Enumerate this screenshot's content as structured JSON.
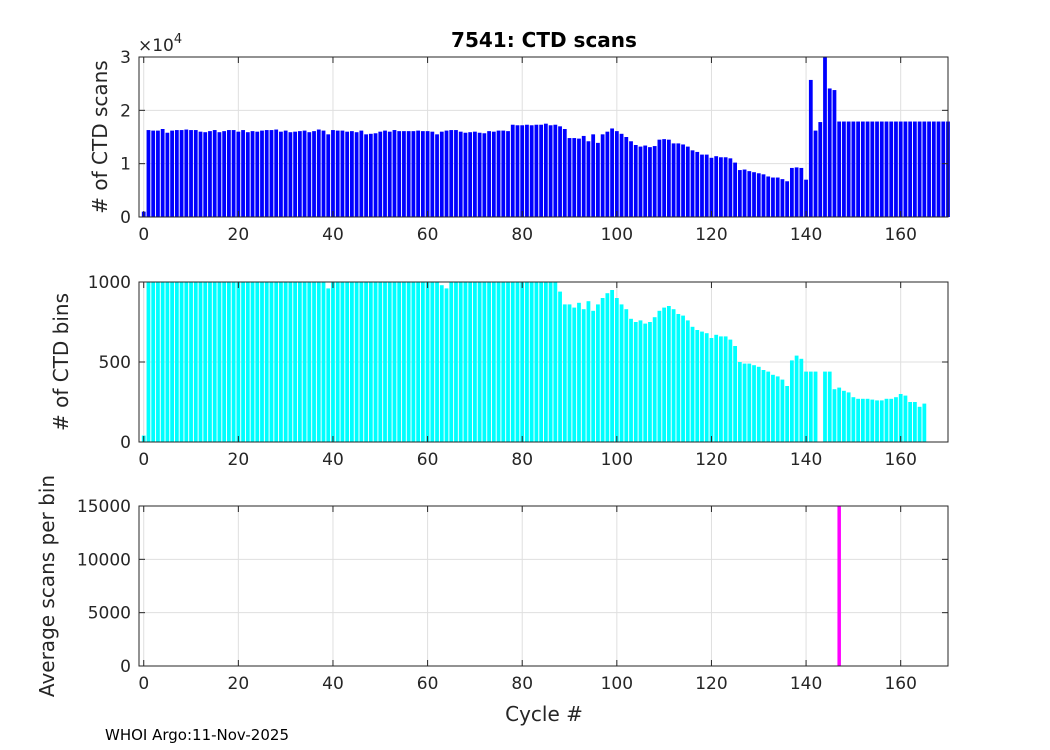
{
  "figure": {
    "footer": "WHOI Argo:11-Nov-2025"
  },
  "chart_data": [
    {
      "type": "bar",
      "title": "7541: CTD scans",
      "ylabel": "# of CTD scans",
      "xlabel": "",
      "exponent_label": "×10",
      "exponent_power": "4",
      "xlim": [
        -1,
        170
      ],
      "ylim": [
        0,
        3
      ],
      "xticks": [
        0,
        20,
        40,
        60,
        80,
        100,
        120,
        140,
        160
      ],
      "yticks": [
        0,
        1,
        2,
        3
      ],
      "grid": true,
      "color": "#0000ff",
      "x_start": 0,
      "values": [
        0.1,
        1.63,
        1.62,
        1.62,
        1.65,
        1.58,
        1.62,
        1.63,
        1.63,
        1.64,
        1.63,
        1.63,
        1.6,
        1.59,
        1.61,
        1.63,
        1.59,
        1.61,
        1.63,
        1.63,
        1.6,
        1.63,
        1.59,
        1.61,
        1.6,
        1.62,
        1.63,
        1.63,
        1.64,
        1.6,
        1.62,
        1.59,
        1.6,
        1.61,
        1.62,
        1.59,
        1.61,
        1.64,
        1.62,
        1.55,
        1.63,
        1.62,
        1.62,
        1.6,
        1.61,
        1.59,
        1.62,
        1.55,
        1.56,
        1.57,
        1.6,
        1.62,
        1.6,
        1.63,
        1.61,
        1.61,
        1.61,
        1.61,
        1.62,
        1.61,
        1.61,
        1.6,
        1.55,
        1.6,
        1.62,
        1.63,
        1.63,
        1.6,
        1.58,
        1.59,
        1.6,
        1.58,
        1.57,
        1.61,
        1.6,
        1.62,
        1.62,
        1.61,
        1.73,
        1.72,
        1.72,
        1.73,
        1.72,
        1.73,
        1.73,
        1.75,
        1.72,
        1.73,
        1.7,
        1.65,
        1.48,
        1.48,
        1.47,
        1.52,
        1.42,
        1.55,
        1.39,
        1.55,
        1.6,
        1.66,
        1.61,
        1.56,
        1.5,
        1.42,
        1.35,
        1.32,
        1.34,
        1.31,
        1.33,
        1.45,
        1.46,
        1.45,
        1.38,
        1.38,
        1.36,
        1.32,
        1.25,
        1.22,
        1.17,
        1.17,
        1.11,
        1.14,
        1.12,
        1.12,
        1.1,
        1.02,
        0.88,
        0.89,
        0.86,
        0.84,
        0.82,
        0.8,
        0.76,
        0.74,
        0.74,
        0.71,
        0.67,
        0.92,
        0.93,
        0.92,
        0.7,
        2.57,
        1.62,
        1.78,
        3.0,
        2.41,
        2.38,
        1.79,
        1.79,
        1.79,
        1.79,
        1.79,
        1.79,
        1.79,
        1.79,
        1.79,
        1.79,
        1.79,
        1.79,
        1.79,
        1.79,
        1.79,
        1.79,
        1.79,
        1.79,
        1.79,
        1.79,
        1.79,
        1.79,
        1.79,
        1.79
      ]
    },
    {
      "type": "bar",
      "title": "",
      "ylabel": "# of CTD bins",
      "xlabel": "",
      "xlim": [
        -1,
        170
      ],
      "ylim": [
        0,
        1000
      ],
      "xticks": [
        0,
        20,
        40,
        60,
        80,
        100,
        120,
        140,
        160
      ],
      "yticks": [
        0,
        500,
        1000
      ],
      "grid": true,
      "color": "#00ffff",
      "x_start": 0,
      "values": [
        40,
        1000,
        1000,
        1000,
        1000,
        1000,
        1000,
        1000,
        1000,
        1000,
        1000,
        1000,
        1000,
        1000,
        1000,
        1000,
        1000,
        1000,
        1000,
        1000,
        1000,
        1000,
        1000,
        1000,
        1000,
        1000,
        1000,
        1000,
        1000,
        1000,
        1000,
        1000,
        1000,
        1000,
        1000,
        1000,
        1000,
        1000,
        1000,
        960,
        1000,
        1000,
        1000,
        1000,
        1000,
        1000,
        1000,
        1000,
        1000,
        1000,
        1000,
        1000,
        1000,
        1000,
        1000,
        1000,
        1000,
        1000,
        1000,
        1000,
        1000,
        1000,
        1000,
        980,
        960,
        1000,
        1000,
        1000,
        1000,
        1000,
        1000,
        1000,
        1000,
        1000,
        1000,
        1000,
        1000,
        1000,
        1000,
        1000,
        1000,
        1000,
        1000,
        1000,
        1000,
        1000,
        1000,
        1000,
        940,
        860,
        860,
        840,
        870,
        830,
        880,
        820,
        860,
        900,
        930,
        950,
        900,
        860,
        830,
        770,
        750,
        760,
        740,
        750,
        780,
        820,
        840,
        850,
        830,
        800,
        790,
        760,
        720,
        700,
        690,
        680,
        650,
        670,
        660,
        660,
        640,
        600,
        500,
        490,
        490,
        480,
        470,
        450,
        440,
        420,
        410,
        390,
        350,
        510,
        540,
        520,
        440,
        440,
        440,
        0,
        440,
        440,
        330,
        340,
        320,
        310,
        280,
        270,
        270,
        270,
        265,
        260,
        260,
        270,
        270,
        280,
        300,
        290,
        250,
        250,
        220,
        240
      ]
    },
    {
      "type": "bar",
      "title": "",
      "ylabel": "Average scans per bin",
      "xlabel": "Cycle #",
      "xlim": [
        -1,
        170
      ],
      "ylim": [
        0,
        15000
      ],
      "xticks": [
        0,
        20,
        40,
        60,
        80,
        100,
        120,
        140,
        160
      ],
      "yticks": [
        0,
        5000,
        10000,
        15000
      ],
      "grid": true,
      "color": "#ff00ff",
      "x": [
        147
      ],
      "values": [
        15000
      ]
    }
  ]
}
